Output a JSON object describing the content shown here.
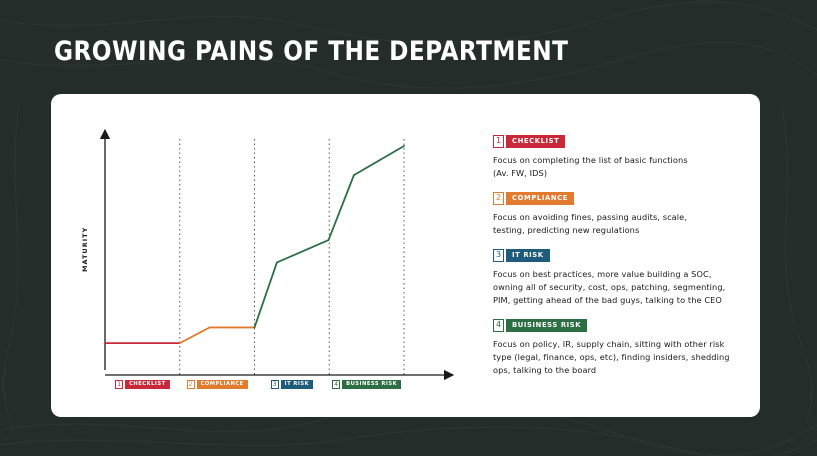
{
  "page": {
    "title": "GROWING PAINS OF THE DEPARTMENT"
  },
  "colors": {
    "background": "#252d2b",
    "card": "#ffffff",
    "checklist": "#c8283a",
    "compliance": "#e07b2f",
    "it_risk": "#1f5b7a",
    "business_risk": "#2e6e45",
    "line_stage2": "#e07b2f",
    "line_stage1": "#c8283a",
    "line_stage3": "#2e6e45"
  },
  "legend": [
    {
      "num": "1",
      "label": "CHECKLIST",
      "color": "#c8283a",
      "desc": "Focus on completing the list of basic functions (Av. FW, IDS)"
    },
    {
      "num": "2",
      "label": "COMPLIANCE",
      "color": "#e07b2f",
      "desc": "Focus on avoiding fines, passing audits, scale, testing, predicting new regulations"
    },
    {
      "num": "3",
      "label": "IT RISK",
      "color": "#1f5b7a",
      "desc": "Focus on best practices, more value building a SOC, owning all of security, cost, ops, patching, segmenting, PIM, getting ahead of the bad guys, talking to the CEO"
    },
    {
      "num": "4",
      "label": "BUISINESS RISK",
      "color": "#2e6e45",
      "desc": "Focus on policy, IR, supply chain, sitting with other risk type (legal, finance, ops, etc), finding insiders, shedding ops, talking to the board"
    }
  ],
  "chart_data": {
    "type": "line",
    "title": "",
    "xlabel": "",
    "ylabel": "MATURITY",
    "categories": [
      "CHECKLIST",
      "COMPLIANCE",
      "IT RISK",
      "BUSINESS RISK"
    ],
    "category_numbers": [
      "1",
      "2",
      "3",
      "4"
    ],
    "category_colors": [
      "#c8283a",
      "#e07b2f",
      "#1f5b7a",
      "#2e6e45"
    ],
    "xlim": [
      0,
      4
    ],
    "ylim": [
      0,
      10
    ],
    "stage_dividers": [
      1,
      2,
      3,
      4
    ],
    "grid": false,
    "series": [
      {
        "points": [
          {
            "x": 0,
            "y": 1.2,
            "c": "#c8283a"
          },
          {
            "x": 1,
            "y": 1.2,
            "c": "#e07b2f"
          },
          {
            "x": 1.4,
            "y": 1.9,
            "c": "#e07b2f"
          },
          {
            "x": 2,
            "y": 1.9,
            "c": "#2e6e45"
          },
          {
            "x": 2.3,
            "y": 4.8,
            "c": "#2e6e45"
          },
          {
            "x": 2.99,
            "y": 5.8,
            "c": "#2e6e45"
          },
          {
            "x": 3.33,
            "y": 8.7,
            "c": "#2e6e45"
          },
          {
            "x": 4,
            "y": 10.0,
            "c": "#2e6e45"
          }
        ]
      }
    ]
  }
}
